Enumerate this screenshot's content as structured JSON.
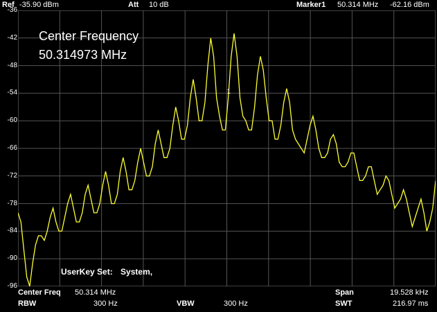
{
  "header": {
    "ref_label": "Ref",
    "ref_value": "-35.90 dBm",
    "att_label": "Att",
    "att_value": "10 dB",
    "marker_label": "Marker1",
    "marker_freq": "50.314 MHz",
    "marker_level": "-62.16 dBm"
  },
  "overlay": {
    "center_freq_title": "Center Frequency",
    "center_freq_value": "50.314973 MHz",
    "userkey_label": "UserKey Set:",
    "userkey_value": "System,"
  },
  "marker": {
    "label": "1"
  },
  "footer": {
    "center_freq_label": "Center Freq",
    "center_freq_value": "50.314 MHz",
    "span_label": "Span",
    "span_value": "19.528 kHz",
    "rbw_label": "RBW",
    "rbw_value": "300 Hz",
    "vbw_label": "VBW",
    "vbw_value": "300 Hz",
    "swt_label": "SWT",
    "swt_value": "216.97 ms"
  },
  "chart_data": {
    "type": "line",
    "y_tick_labels": [
      "-36",
      "-42",
      "-48",
      "-54",
      "-60",
      "-66",
      "-72",
      "-78",
      "-84",
      "-90",
      "-96"
    ],
    "ylim": [
      -96,
      -36
    ],
    "x_divisions": 10,
    "grid": true,
    "trace_color": "#ffff33",
    "series": [
      {
        "values": [
          -80,
          -82,
          -88,
          -94,
          -96,
          -91,
          -87,
          -85,
          -85,
          -86,
          -84,
          -81,
          -79,
          -82,
          -84,
          -84,
          -81,
          -78,
          -76,
          -79,
          -82,
          -82,
          -80,
          -76,
          -74,
          -77,
          -80,
          -80,
          -78,
          -74,
          -71,
          -74,
          -78,
          -78,
          -76,
          -71,
          -68,
          -71,
          -75,
          -75,
          -73,
          -69,
          -66,
          -69,
          -72,
          -72,
          -70,
          -65,
          -62,
          -65,
          -68,
          -68,
          -66,
          -61,
          -57,
          -60,
          -64,
          -64,
          -61,
          -55,
          -51,
          -55,
          -60,
          -60,
          -56,
          -48,
          -42,
          -46,
          -55,
          -59,
          -62,
          -62,
          -55,
          -46,
          -41,
          -46,
          -55,
          -59,
          -60,
          -62,
          -62,
          -57,
          -50,
          -46,
          -49,
          -55,
          -60,
          -60,
          -64,
          -64,
          -61,
          -56,
          -53,
          -56,
          -62,
          -64,
          -65,
          -66,
          -67,
          -64,
          -61,
          -59,
          -62,
          -66,
          -68,
          -68,
          -67,
          -64,
          -63,
          -65,
          -69,
          -70,
          -70,
          -69,
          -67,
          -67,
          -70,
          -73,
          -73,
          -72,
          -70,
          -70,
          -73,
          -76,
          -75,
          -74,
          -72,
          -73,
          -76,
          -79,
          -78,
          -77,
          -75,
          -77,
          -80,
          -83,
          -81,
          -79,
          -77,
          -80,
          -84,
          -82,
          -79,
          -73
        ]
      }
    ]
  }
}
